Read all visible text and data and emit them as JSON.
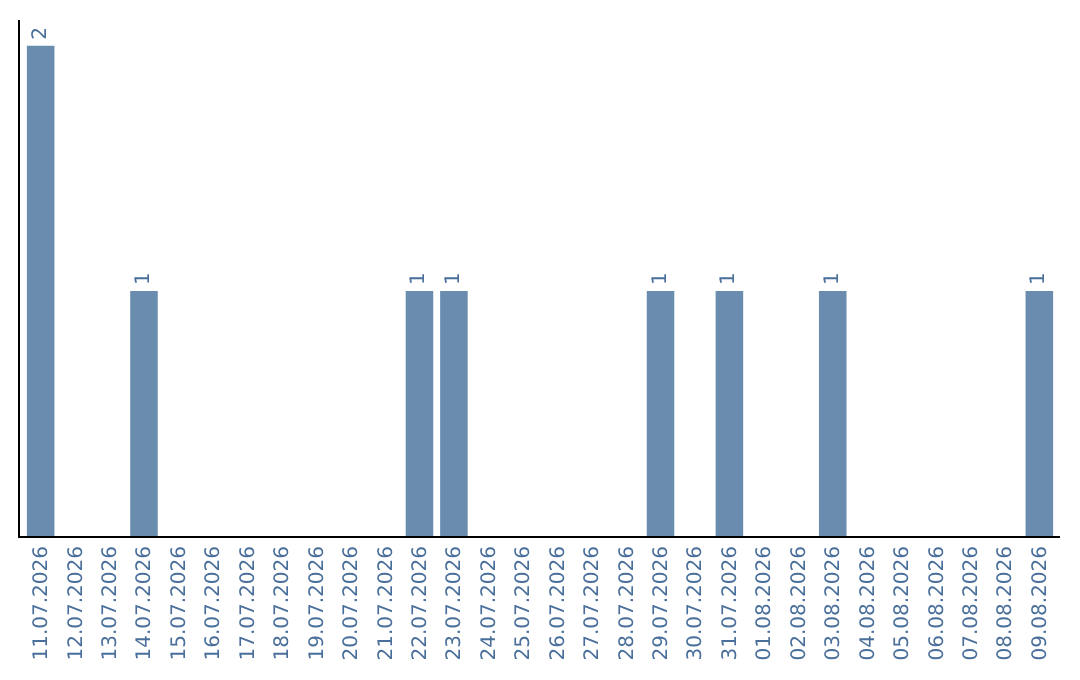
{
  "chart_data": {
    "type": "bar",
    "categories": [
      "11.07.2026",
      "12.07.2026",
      "13.07.2026",
      "14.07.2026",
      "15.07.2026",
      "16.07.2026",
      "17.07.2026",
      "18.07.2026",
      "19.07.2026",
      "20.07.2026",
      "21.07.2026",
      "22.07.2026",
      "23.07.2026",
      "24.07.2026",
      "25.07.2026",
      "26.07.2026",
      "27.07.2026",
      "28.07.2026",
      "29.07.2026",
      "30.07.2026",
      "31.07.2026",
      "01.08.2026",
      "02.08.2026",
      "03.08.2026",
      "04.08.2026",
      "05.08.2026",
      "06.08.2026",
      "07.08.2026",
      "08.08.2026",
      "09.08.2026"
    ],
    "values": [
      2,
      0,
      0,
      1,
      0,
      0,
      0,
      0,
      0,
      0,
      0,
      1,
      1,
      0,
      0,
      0,
      0,
      0,
      1,
      0,
      1,
      0,
      0,
      1,
      0,
      0,
      0,
      0,
      0,
      1
    ],
    "value_labels": [
      "2",
      null,
      null,
      "1",
      null,
      null,
      null,
      null,
      null,
      null,
      null,
      "1",
      "1",
      null,
      null,
      null,
      null,
      null,
      "1",
      null,
      "1",
      null,
      null,
      "1",
      null,
      null,
      null,
      null,
      null,
      "1"
    ],
    "color": "#6a8caf",
    "legend": false
  }
}
